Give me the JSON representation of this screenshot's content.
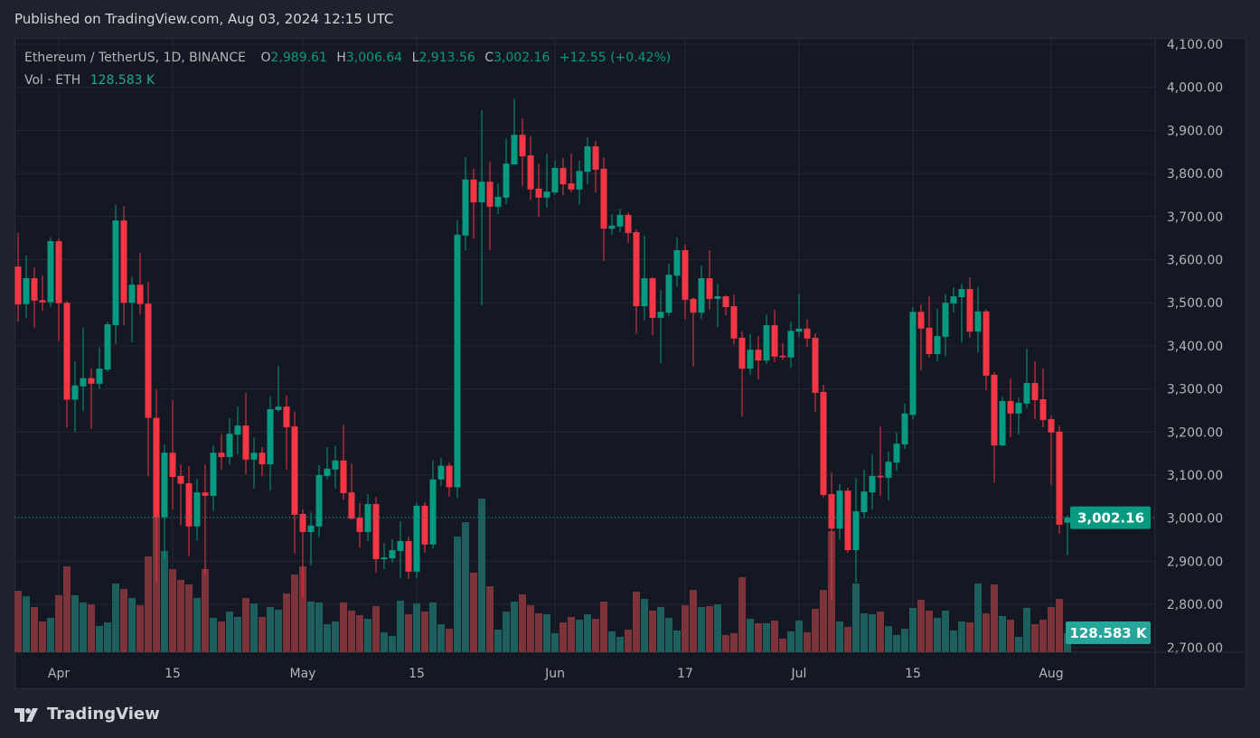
{
  "header": {
    "published": "Published on TradingView.com, Aug 03, 2024 12:15 UTC"
  },
  "legend": {
    "symbol": "Ethereum / TetherUS, 1D, BINANCE",
    "o_label": "O",
    "open": "2,989.61",
    "h_label": "H",
    "high": "3,006.64",
    "l_label": "L",
    "low": "2,913.56",
    "c_label": "C",
    "close": "3,002.16",
    "change": "+12.55 (+0.42%)",
    "vol_label": "Vol · ETH",
    "vol_value": "128.583 K"
  },
  "footer": {
    "logo_text": "TradingView",
    "logo_icon": "tradingview-logo-icon"
  },
  "colors": {
    "up": "#089981",
    "down": "#f23645",
    "vol_up": "#1d5f5c",
    "vol_down": "#7c3339",
    "price_tag": "#089981",
    "vol_tag": "#26a69a",
    "background": "#141823"
  },
  "chart_data": {
    "type": "candlestick",
    "symbol": "ETHUSDT",
    "interval": "1D",
    "start_date": "2024-03-27",
    "end_date": "2024-08-03",
    "ylim": [
      2700,
      4100
    ],
    "y_ticks": [
      "4,100.00",
      "4,000.00",
      "3,900.00",
      "3,800.00",
      "3,700.00",
      "3,600.00",
      "3,500.00",
      "3,400.00",
      "3,300.00",
      "3,200.00",
      "3,100.00",
      "3,000.00",
      "2,900.00",
      "2,800.00",
      "2,700.00"
    ],
    "x_ticks": [
      {
        "label": "Apr",
        "date": "2024-04-01"
      },
      {
        "label": "15",
        "date": "2024-04-15"
      },
      {
        "label": "May",
        "date": "2024-05-01"
      },
      {
        "label": "15",
        "date": "2024-05-15"
      },
      {
        "label": "Jun",
        "date": "2024-06-01"
      },
      {
        "label": "17",
        "date": "2024-06-17"
      },
      {
        "label": "Jul",
        "date": "2024-07-01"
      },
      {
        "label": "15",
        "date": "2024-07-15"
      },
      {
        "label": "Aug",
        "date": "2024-08-01"
      }
    ],
    "grid": true,
    "last_price": 3002.16,
    "last_price_label": "3,002.16",
    "last_volume_label": "128.583 K",
    "ohlc_columns": [
      "open",
      "high",
      "low",
      "close"
    ],
    "ohlc": [
      [
        3584,
        3662,
        3456,
        3496
      ],
      [
        3497,
        3610,
        3464,
        3557
      ],
      [
        3557,
        3582,
        3442,
        3505
      ],
      [
        3506,
        3563,
        3482,
        3501
      ],
      [
        3501,
        3651,
        3490,
        3643
      ],
      [
        3643,
        3650,
        3411,
        3499
      ],
      [
        3500,
        3505,
        3210,
        3275
      ],
      [
        3275,
        3364,
        3199,
        3308
      ],
      [
        3306,
        3442,
        3248,
        3325
      ],
      [
        3325,
        3347,
        3207,
        3312
      ],
      [
        3312,
        3396,
        3300,
        3347
      ],
      [
        3345,
        3456,
        3340,
        3450
      ],
      [
        3448,
        3727,
        3404,
        3691
      ],
      [
        3691,
        3724,
        3448,
        3500
      ],
      [
        3500,
        3560,
        3408,
        3542
      ],
      [
        3542,
        3616,
        3472,
        3497
      ],
      [
        3498,
        3549,
        3097,
        3233
      ],
      [
        3233,
        3299,
        2852,
        3002
      ],
      [
        3002,
        3171,
        2903,
        3152
      ],
      [
        3152,
        3274,
        3021,
        3096
      ],
      [
        3098,
        3125,
        2983,
        3080
      ],
      [
        3081,
        3121,
        2912,
        2981
      ],
      [
        2981,
        3092,
        2948,
        3060
      ],
      [
        3060,
        3125,
        2870,
        3052
      ],
      [
        3052,
        3169,
        3017,
        3152
      ],
      [
        3152,
        3195,
        3113,
        3142
      ],
      [
        3142,
        3232,
        3125,
        3196
      ],
      [
        3194,
        3259,
        3148,
        3215
      ],
      [
        3215,
        3291,
        3102,
        3136
      ],
      [
        3136,
        3188,
        3069,
        3152
      ],
      [
        3152,
        3165,
        3098,
        3125
      ],
      [
        3125,
        3282,
        3064,
        3253
      ],
      [
        3251,
        3354,
        3247,
        3259
      ],
      [
        3259,
        3285,
        3113,
        3211
      ],
      [
        3213,
        3247,
        2918,
        3008
      ],
      [
        3010,
        3020,
        2817,
        2968
      ],
      [
        2968,
        3014,
        2890,
        2983
      ],
      [
        2981,
        3123,
        2955,
        3100
      ],
      [
        3098,
        3165,
        3090,
        3115
      ],
      [
        3113,
        3169,
        3069,
        3134
      ],
      [
        3134,
        3217,
        3043,
        3058
      ],
      [
        3060,
        3127,
        2997,
        2999
      ],
      [
        3001,
        3035,
        2932,
        2968
      ],
      [
        2968,
        3056,
        2947,
        3033
      ],
      [
        3033,
        3050,
        2874,
        2905
      ],
      [
        2905,
        2943,
        2882,
        2909
      ],
      [
        2907,
        2951,
        2897,
        2926
      ],
      [
        2924,
        2993,
        2861,
        2947
      ],
      [
        2947,
        2957,
        2859,
        2876
      ],
      [
        2876,
        3037,
        2861,
        3029
      ],
      [
        3029,
        3037,
        2920,
        2939
      ],
      [
        2939,
        3135,
        2930,
        3090
      ],
      [
        3090,
        3140,
        3075,
        3122
      ],
      [
        3122,
        3130,
        3050,
        3072
      ],
      [
        3072,
        3691,
        3047,
        3658
      ],
      [
        3656,
        3838,
        3622,
        3786
      ],
      [
        3786,
        3811,
        3649,
        3733
      ],
      [
        3733,
        3947,
        3494,
        3781
      ],
      [
        3781,
        3827,
        3622,
        3723
      ],
      [
        3723,
        3777,
        3706,
        3746
      ],
      [
        3744,
        3882,
        3729,
        3823
      ],
      [
        3821,
        3974,
        3821,
        3890
      ],
      [
        3890,
        3928,
        3771,
        3840
      ],
      [
        3842,
        3886,
        3739,
        3763
      ],
      [
        3765,
        3823,
        3700,
        3744
      ],
      [
        3744,
        3846,
        3721,
        3758
      ],
      [
        3756,
        3830,
        3750,
        3813
      ],
      [
        3813,
        3836,
        3750,
        3775
      ],
      [
        3777,
        3846,
        3756,
        3763
      ],
      [
        3763,
        3830,
        3727,
        3806
      ],
      [
        3804,
        3884,
        3775,
        3863
      ],
      [
        3863,
        3876,
        3756,
        3809
      ],
      [
        3811,
        3838,
        3597,
        3672
      ],
      [
        3672,
        3706,
        3658,
        3679
      ],
      [
        3677,
        3718,
        3664,
        3704
      ],
      [
        3704,
        3710,
        3639,
        3662
      ],
      [
        3664,
        3670,
        3429,
        3492
      ],
      [
        3492,
        3656,
        3459,
        3557
      ],
      [
        3557,
        3559,
        3425,
        3465
      ],
      [
        3465,
        3530,
        3360,
        3479
      ],
      [
        3477,
        3591,
        3469,
        3565
      ],
      [
        3563,
        3651,
        3538,
        3622
      ],
      [
        3622,
        3635,
        3461,
        3507
      ],
      [
        3509,
        3513,
        3352,
        3477
      ],
      [
        3477,
        3586,
        3463,
        3557
      ],
      [
        3557,
        3622,
        3484,
        3509
      ],
      [
        3509,
        3544,
        3444,
        3515
      ],
      [
        3515,
        3517,
        3471,
        3490
      ],
      [
        3492,
        3519,
        3404,
        3417
      ],
      [
        3419,
        3433,
        3236,
        3347
      ],
      [
        3347,
        3427,
        3333,
        3391
      ],
      [
        3391,
        3423,
        3322,
        3366
      ],
      [
        3366,
        3473,
        3358,
        3448
      ],
      [
        3448,
        3484,
        3362,
        3375
      ],
      [
        3377,
        3406,
        3368,
        3375
      ],
      [
        3373,
        3456,
        3349,
        3435
      ],
      [
        3433,
        3521,
        3421,
        3440
      ],
      [
        3440,
        3461,
        3398,
        3417
      ],
      [
        3419,
        3429,
        3247,
        3291
      ],
      [
        3293,
        3310,
        3048,
        3054
      ],
      [
        3056,
        3106,
        2811,
        2976
      ],
      [
        2976,
        3079,
        2951,
        3064
      ],
      [
        3064,
        3071,
        2920,
        2926
      ],
      [
        2926,
        3094,
        2850,
        3016
      ],
      [
        3014,
        3113,
        3001,
        3062
      ],
      [
        3060,
        3148,
        3020,
        3098
      ],
      [
        3098,
        3213,
        3052,
        3096
      ],
      [
        3094,
        3155,
        3041,
        3131
      ],
      [
        3129,
        3199,
        3110,
        3173
      ],
      [
        3171,
        3266,
        3161,
        3243
      ],
      [
        3240,
        3490,
        3230,
        3479
      ],
      [
        3479,
        3496,
        3343,
        3440
      ],
      [
        3442,
        3515,
        3373,
        3381
      ],
      [
        3381,
        3486,
        3364,
        3423
      ],
      [
        3421,
        3520,
        3375,
        3500
      ],
      [
        3498,
        3536,
        3477,
        3515
      ],
      [
        3513,
        3544,
        3408,
        3532
      ],
      [
        3532,
        3559,
        3419,
        3433
      ],
      [
        3433,
        3538,
        3385,
        3480
      ],
      [
        3480,
        3484,
        3297,
        3331
      ],
      [
        3333,
        3339,
        3083,
        3169
      ],
      [
        3169,
        3282,
        3167,
        3272
      ],
      [
        3272,
        3324,
        3188,
        3243
      ],
      [
        3243,
        3280,
        3194,
        3268
      ],
      [
        3266,
        3394,
        3255,
        3314
      ],
      [
        3314,
        3364,
        3230,
        3274
      ],
      [
        3276,
        3347,
        3211,
        3228
      ],
      [
        3230,
        3238,
        3077,
        3199
      ],
      [
        3201,
        3215,
        2964,
        2985
      ],
      [
        2989.61,
        3006.64,
        2913.56,
        3002.16
      ]
    ],
    "volume_unit": "K ETH",
    "volume": [
      416,
      379,
      306,
      208,
      233,
      386,
      581,
      386,
      337,
      324,
      177,
      202,
      465,
      428,
      367,
      318,
      649,
      918,
      685,
      563,
      490,
      459,
      367,
      563,
      233,
      208,
      275,
      239,
      367,
      330,
      239,
      306,
      288,
      398,
      526,
      581,
      343,
      337,
      190,
      208,
      337,
      282,
      251,
      226,
      312,
      135,
      110,
      349,
      257,
      330,
      275,
      337,
      190,
      159,
      783,
      881,
      539,
      1040,
      447,
      153,
      275,
      343,
      392,
      318,
      263,
      257,
      129,
      202,
      239,
      220,
      257,
      226,
      343,
      141,
      104,
      153,
      410,
      361,
      282,
      306,
      233,
      147,
      318,
      422,
      306,
      312,
      324,
      116,
      129,
      508,
      226,
      196,
      196,
      214,
      92,
      141,
      214,
      135,
      294,
      422,
      820,
      208,
      171,
      465,
      263,
      257,
      275,
      177,
      116,
      159,
      300,
      355,
      282,
      233,
      282,
      147,
      208,
      202,
      465,
      263,
      459,
      245,
      220,
      104,
      300,
      190,
      220,
      306,
      361,
      128.583
    ]
  }
}
